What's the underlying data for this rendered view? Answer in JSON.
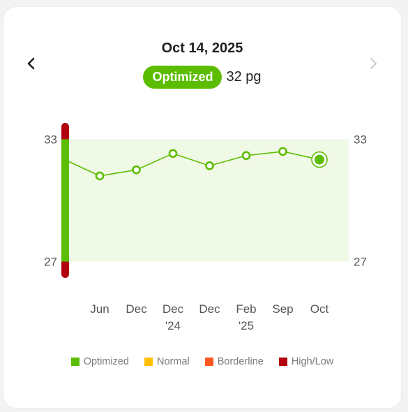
{
  "header": {
    "date": "Oct 14, 2025",
    "status_label": "Optimized",
    "status_value": "32 pg"
  },
  "nav": {
    "prev_icon": "chevron-left-icon",
    "next_icon": "chevron-right-icon"
  },
  "colors": {
    "optimized": "#5cbd00",
    "normal": "#ffc107",
    "borderline": "#ff5722",
    "high_low": "#b3000f",
    "band_fill": "#f0f8e6",
    "text_axis": "#555555",
    "nav_disabled": "#cfcfcf"
  },
  "legend": [
    {
      "label": "Optimized",
      "color": "#5cbd00"
    },
    {
      "label": "Normal",
      "color": "#ffc107"
    },
    {
      "label": "Borderline",
      "color": "#ff5722"
    },
    {
      "label": "High/Low",
      "color": "#b3000f"
    }
  ],
  "chart_data": {
    "type": "line",
    "unit": "pg",
    "x": [
      {
        "label": "Jun",
        "sublabel": ""
      },
      {
        "label": "Dec",
        "sublabel": ""
      },
      {
        "label": "Dec",
        "sublabel": "'24"
      },
      {
        "label": "Dec",
        "sublabel": ""
      },
      {
        "label": "Feb",
        "sublabel": "'25"
      },
      {
        "label": "Sep",
        "sublabel": ""
      },
      {
        "label": "Oct",
        "sublabel": ""
      }
    ],
    "series": [
      {
        "values": [
          31.2,
          31.5,
          32.3,
          31.7,
          32.2,
          32.4,
          32.0
        ],
        "lead_in_value": 31.9
      }
    ],
    "ylim": [
      26.2,
      33.8
    ],
    "yticks": [
      27,
      33
    ],
    "optimized_range": [
      27,
      33
    ],
    "selected_index": 6,
    "grid": false
  }
}
